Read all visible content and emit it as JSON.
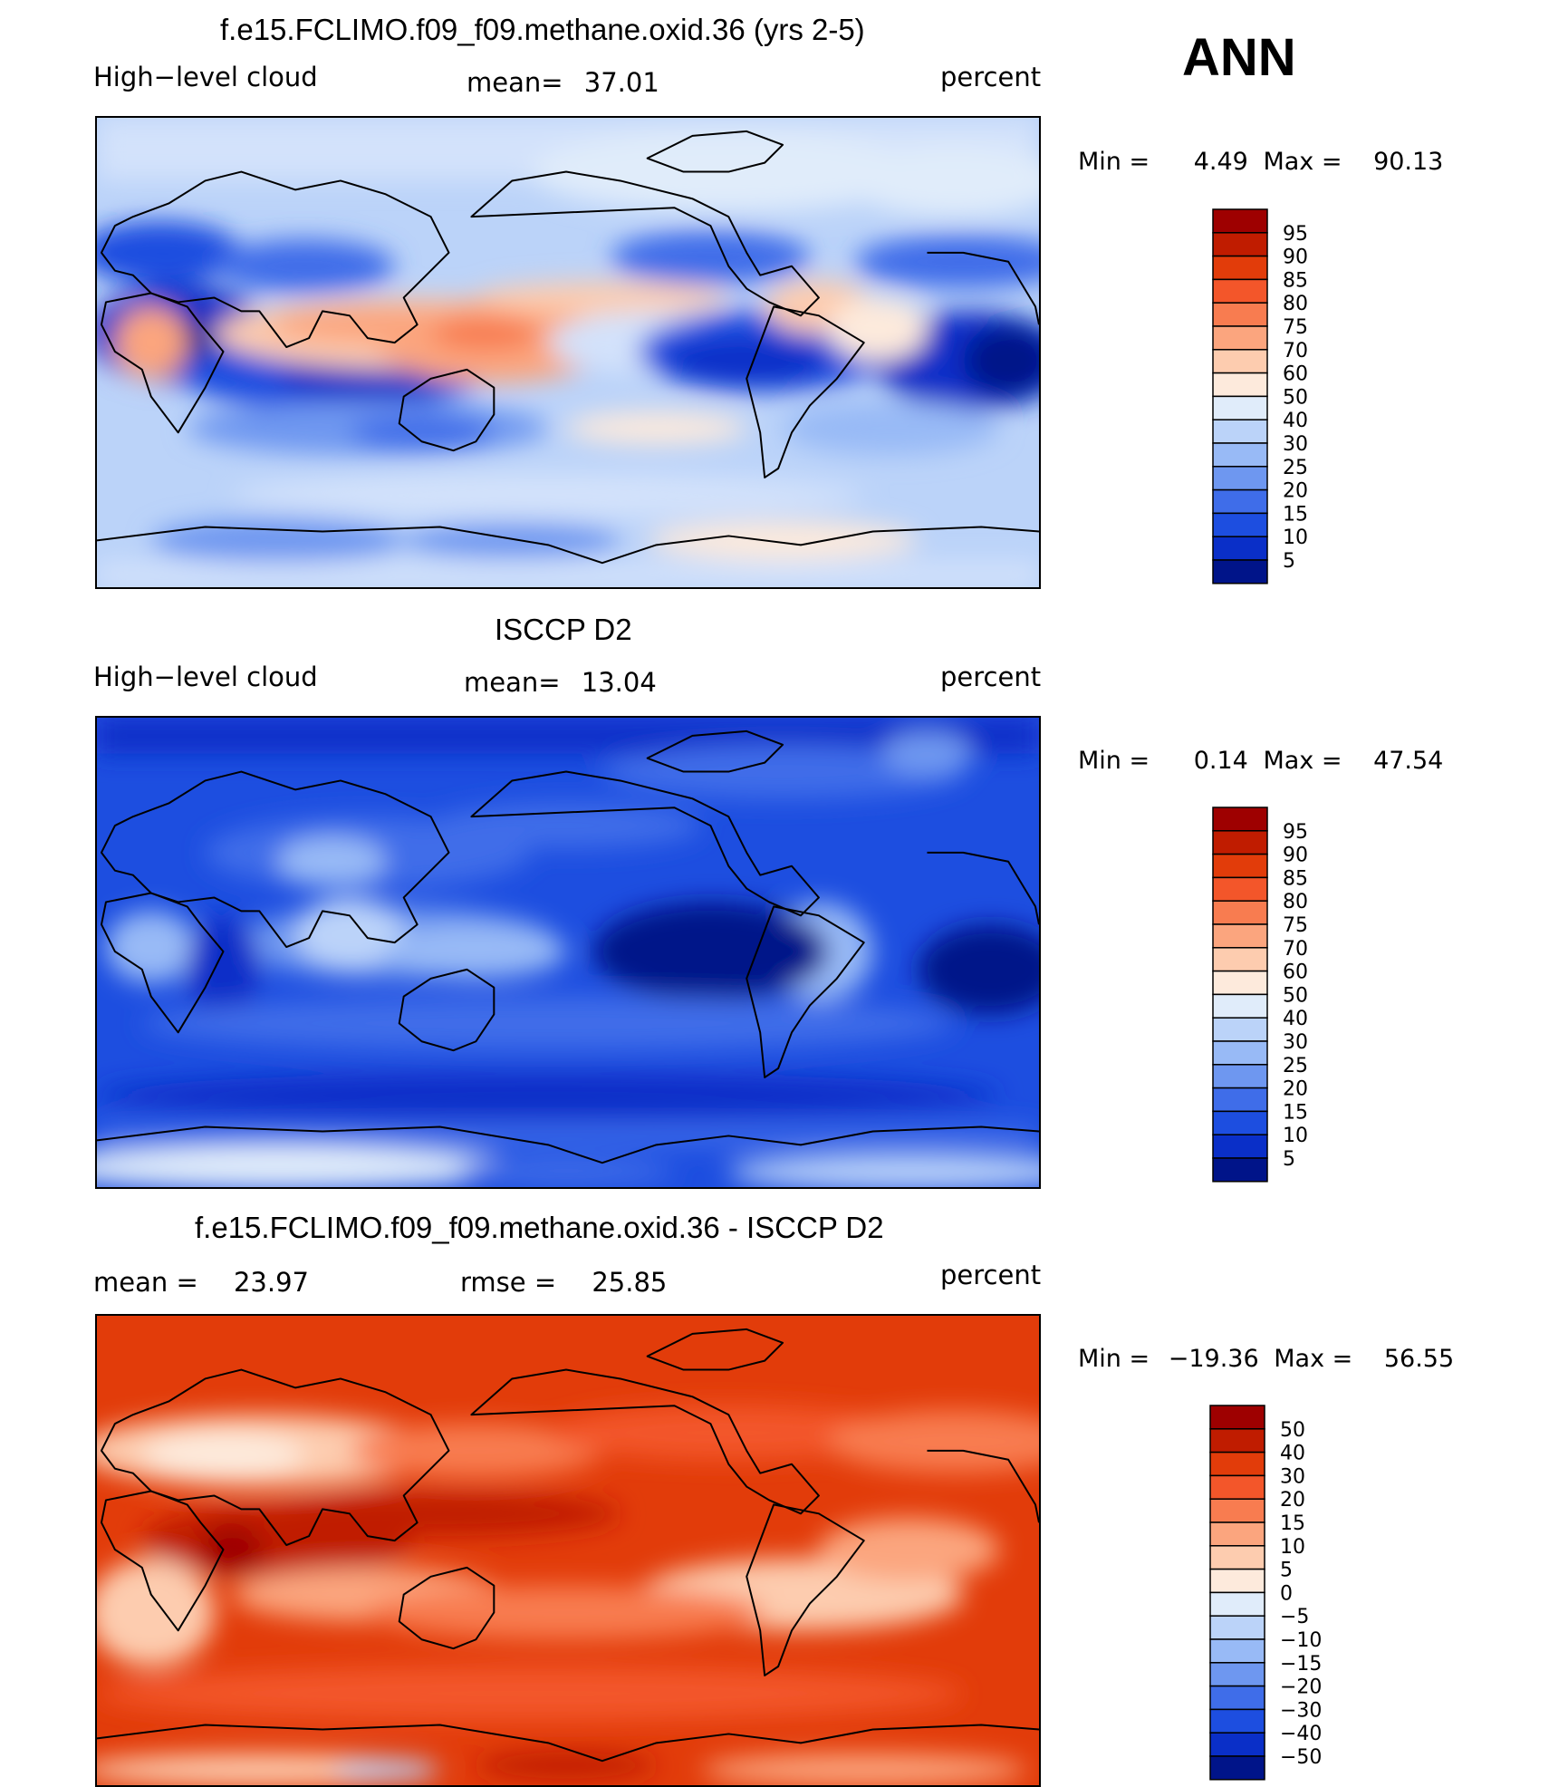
{
  "season": "ANN",
  "panels": [
    {
      "title": "f.e15.FCLIMO.f09_f09.methane.oxid.36 (yrs 2-5)",
      "left": "High−level cloud",
      "stat1_label": "mean=",
      "stat1_value": "37.01",
      "stat2_label": "",
      "stat2_value": "",
      "units": "percent",
      "min_label": "Min  =",
      "min_value": "4.49",
      "max_label": "Max  =",
      "max_value": "90.13"
    },
    {
      "title": "ISCCP D2",
      "left": "High−level cloud",
      "stat1_label": "mean=",
      "stat1_value": "13.04",
      "stat2_label": "",
      "stat2_value": "",
      "units": "percent",
      "min_label": "Min  =",
      "min_value": "0.14",
      "max_label": "Max  =",
      "max_value": "47.54"
    },
    {
      "title": "f.e15.FCLIMO.f09_f09.methane.oxid.36 - ISCCP D2",
      "left": "mean  =",
      "left_value": "23.97",
      "stat1_label": "rmse  =",
      "stat1_value": "25.85",
      "units": "percent",
      "min_label": "Min  =",
      "min_value": "−19.36",
      "max_label": "Max  =",
      "max_value": "56.55"
    }
  ],
  "chart_data": [
    {
      "type": "heatmap",
      "title": "f.e15.FCLIMO.f09_f09.methane.oxid.36 (yrs 2-5)",
      "variable": "High-level cloud",
      "units": "percent",
      "mean": 37.01,
      "min": 4.49,
      "max": 90.13,
      "colorbar_levels": [
        95,
        90,
        85,
        80,
        75,
        70,
        60,
        50,
        40,
        30,
        25,
        20,
        15,
        10,
        5
      ],
      "colors": [
        "#9e0000",
        "#c01c00",
        "#e23c0a",
        "#f3562a",
        "#f87c50",
        "#fba57e",
        "#fdccaf",
        "#fdeadc",
        "#e0ecfa",
        "#bbd3f9",
        "#98baf6",
        "#6e97f0",
        "#3f6de9",
        "#1d4ee0",
        "#0a2fc8",
        "#001489"
      ]
    },
    {
      "type": "heatmap",
      "title": "ISCCP D2",
      "variable": "High-level cloud",
      "units": "percent",
      "mean": 13.04,
      "min": 0.14,
      "max": 47.54,
      "colorbar_levels": [
        95,
        90,
        85,
        80,
        75,
        70,
        60,
        50,
        40,
        30,
        25,
        20,
        15,
        10,
        5
      ],
      "colors": [
        "#9e0000",
        "#c01c00",
        "#e23c0a",
        "#f3562a",
        "#f87c50",
        "#fba57e",
        "#fdccaf",
        "#fdeadc",
        "#e0ecfa",
        "#bbd3f9",
        "#98baf6",
        "#6e97f0",
        "#3f6de9",
        "#1d4ee0",
        "#0a2fc8",
        "#001489"
      ]
    },
    {
      "type": "heatmap",
      "title": "f.e15.FCLIMO.f09_f09.methane.oxid.36 - ISCCP D2",
      "units": "percent",
      "mean": 23.97,
      "rmse": 25.85,
      "min": -19.36,
      "max": 56.55,
      "colorbar_levels": [
        "50",
        "40",
        "30",
        "20",
        "15",
        "10",
        "5",
        "0",
        "−5",
        "−10",
        "−15",
        "−20",
        "−30",
        "−40",
        "−50"
      ],
      "colors": [
        "#9e0000",
        "#c01c00",
        "#e23c0a",
        "#f3562a",
        "#f87c50",
        "#fba57e",
        "#fdccaf",
        "#fdeadc",
        "#e0ecfa",
        "#bbd3f9",
        "#98baf6",
        "#6e97f0",
        "#3f6de9",
        "#1d4ee0",
        "#0a2fc8",
        "#001489"
      ]
    }
  ]
}
